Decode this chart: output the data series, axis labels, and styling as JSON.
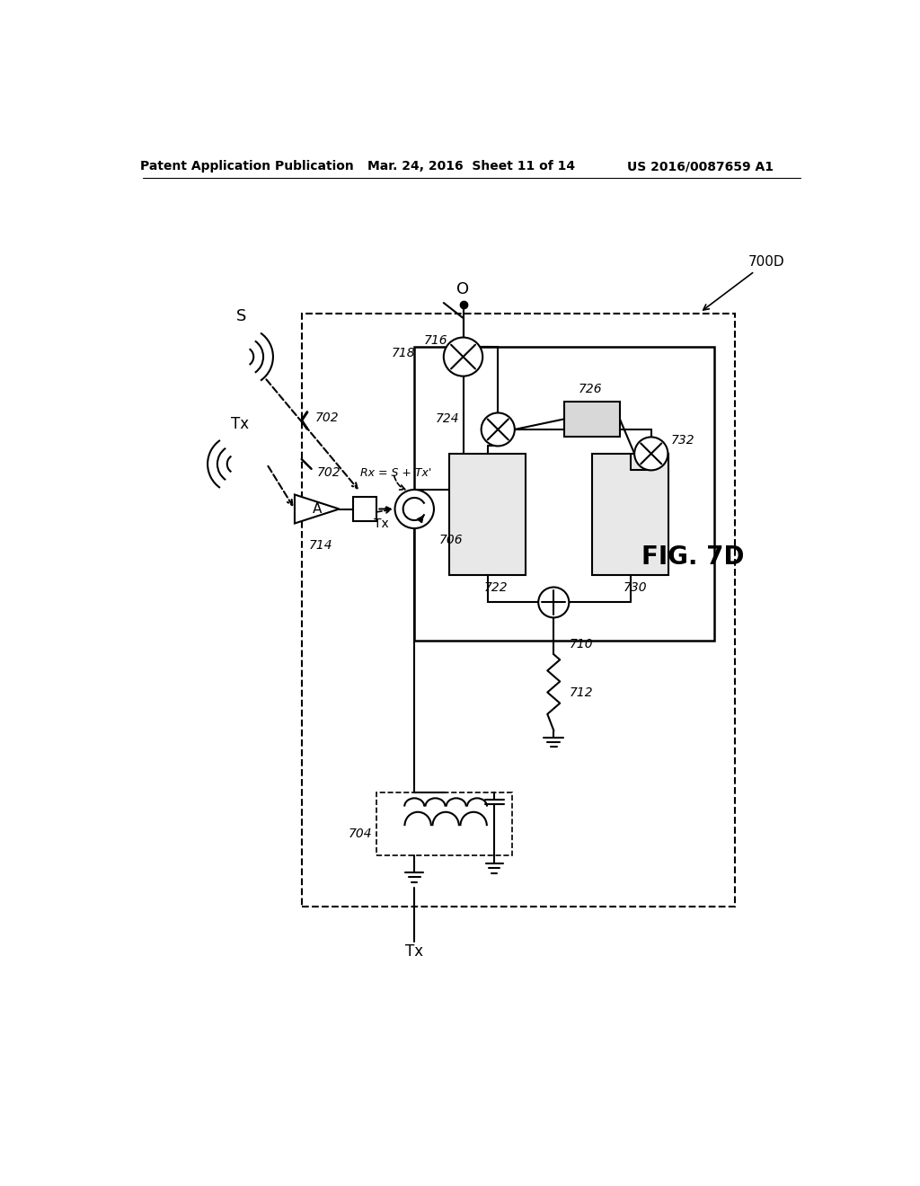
{
  "bg_color": "#ffffff",
  "header_left": "Patent Application Publication",
  "header_mid": "Mar. 24, 2016  Sheet 11 of 14",
  "header_right": "US 2016/0087659 A1",
  "fig_label": "FIG. 7D",
  "label_700D": "700D",
  "label_S": "S",
  "label_Tx_left": "Tx",
  "label_Tx_bot": "Tx",
  "label_A": "A",
  "label_O": "O",
  "label_Rx": "Rx = S + Tx'",
  "label_Tx_circ": "Tx",
  "labels": [
    "702",
    "704",
    "706",
    "710",
    "712",
    "714",
    "716",
    "718",
    "722",
    "724",
    "726",
    "730",
    "732"
  ]
}
